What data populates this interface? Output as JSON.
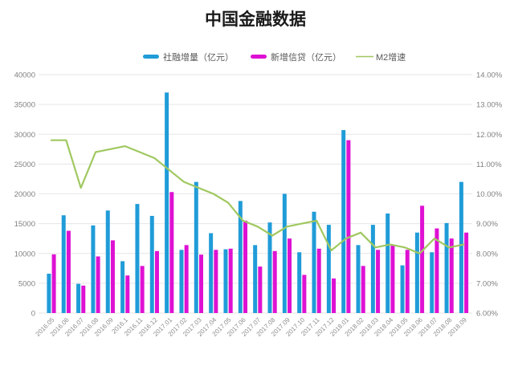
{
  "title": "中国金融数据",
  "legend": {
    "items": [
      {
        "label": "社融增量（亿元）",
        "type": "bar",
        "color": "#209CD8"
      },
      {
        "label": "新增信贷（亿元）",
        "type": "bar",
        "color": "#DE11D3"
      },
      {
        "label": "M2增速",
        "type": "line",
        "color": "#A0C860"
      }
    ]
  },
  "chart_data": {
    "type": "bar",
    "subtype": "combo-bar-line-dual-axis",
    "title": "中国金融数据",
    "grid": true,
    "legend_position": "top",
    "categories": [
      "2016.05",
      "2016.06",
      "2016.07",
      "2016.08",
      "2016.09",
      "2016.1",
      "2016.11",
      "2016.12",
      "2017.01",
      "2017.02",
      "2017.03",
      "2017.04",
      "2017.05",
      "2017.06",
      "2017.07",
      "2017.08",
      "2017.09",
      "2017.10",
      "2017.11",
      "2017.12",
      "2018.01",
      "2018.02",
      "2018.03",
      "2018.04",
      "2018.05",
      "2018.06",
      "2018.07",
      "2018.08",
      "2018.09"
    ],
    "series": [
      {
        "name": "社融增量（亿元）",
        "type": "bar",
        "axis": "left",
        "color": "#209CD8",
        "values": [
          6600,
          16400,
          4900,
          14700,
          17200,
          8700,
          18300,
          16300,
          37000,
          10600,
          22000,
          13400,
          10700,
          18800,
          11400,
          15200,
          20000,
          10200,
          17000,
          14800,
          30700,
          11400,
          14800,
          16700,
          8000,
          13500,
          10200,
          15100,
          22000
        ]
      },
      {
        "name": "新增信贷（亿元）",
        "type": "bar",
        "axis": "left",
        "color": "#DE11D3",
        "values": [
          9850,
          13800,
          4600,
          9500,
          12200,
          6300,
          7900,
          10400,
          20300,
          11400,
          9800,
          10600,
          10800,
          15500,
          7800,
          10400,
          12500,
          6400,
          10800,
          5800,
          29000,
          7900,
          10600,
          11300,
          10600,
          18000,
          14200,
          12500,
          13500
        ]
      },
      {
        "name": "M2增速",
        "type": "line",
        "axis": "right",
        "color": "#A0C860",
        "values": [
          11.8,
          11.8,
          10.2,
          11.4,
          11.5,
          11.6,
          11.4,
          11.2,
          10.8,
          10.4,
          10.2,
          10.0,
          9.7,
          9.1,
          8.9,
          8.6,
          8.9,
          9.0,
          9.1,
          8.1,
          8.5,
          8.7,
          8.2,
          8.3,
          8.2,
          8.0,
          8.5,
          8.2,
          8.3
        ]
      }
    ],
    "left_axis": {
      "min": 0,
      "max": 40000,
      "step": 5000,
      "ticks": [
        "0",
        "5000",
        "10000",
        "15000",
        "20000",
        "25000",
        "30000",
        "35000",
        "40000"
      ]
    },
    "right_axis": {
      "min": 6,
      "max": 14,
      "step": 1,
      "ticks": [
        "6.00%",
        "7.00%",
        "8.00%",
        "9.00%",
        "10.00%",
        "11.00%",
        "12.00%",
        "13.00%",
        "14.00%"
      ]
    },
    "colors": {
      "grid": "#E6E6E6",
      "tick_text": "#808080",
      "x_label_text": "#8C8C8C",
      "legend_text": "#595959",
      "title_text": "#1A1A1A"
    }
  }
}
